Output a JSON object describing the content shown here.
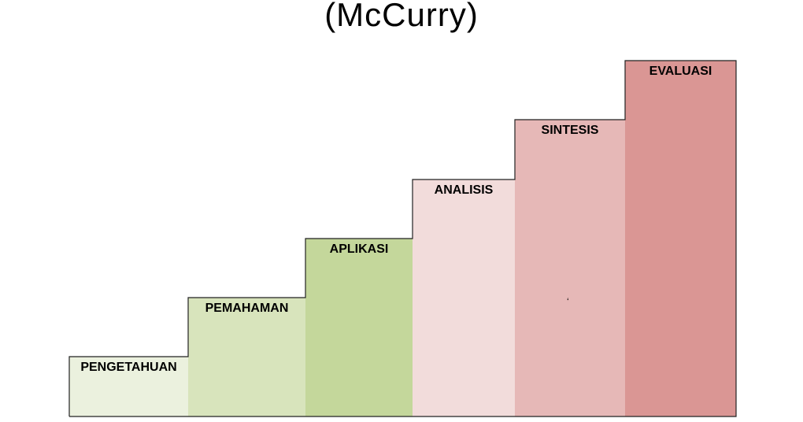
{
  "title": "(McCurry)",
  "steps": [
    {
      "label": "PENGETAHUAN",
      "color": "#ebf1de"
    },
    {
      "label": "PEMAHAMAN",
      "color": "#d8e4bc"
    },
    {
      "label": "APLIKASI",
      "color": "#c4d79b"
    },
    {
      "label": "ANALISIS",
      "color": "#f2dcdb"
    },
    {
      "label": "SINTESIS",
      "color": "#e6b8b7"
    },
    {
      "label": "EVALUASI",
      "color": "#da9694"
    }
  ],
  "stray_mark": "‘"
}
